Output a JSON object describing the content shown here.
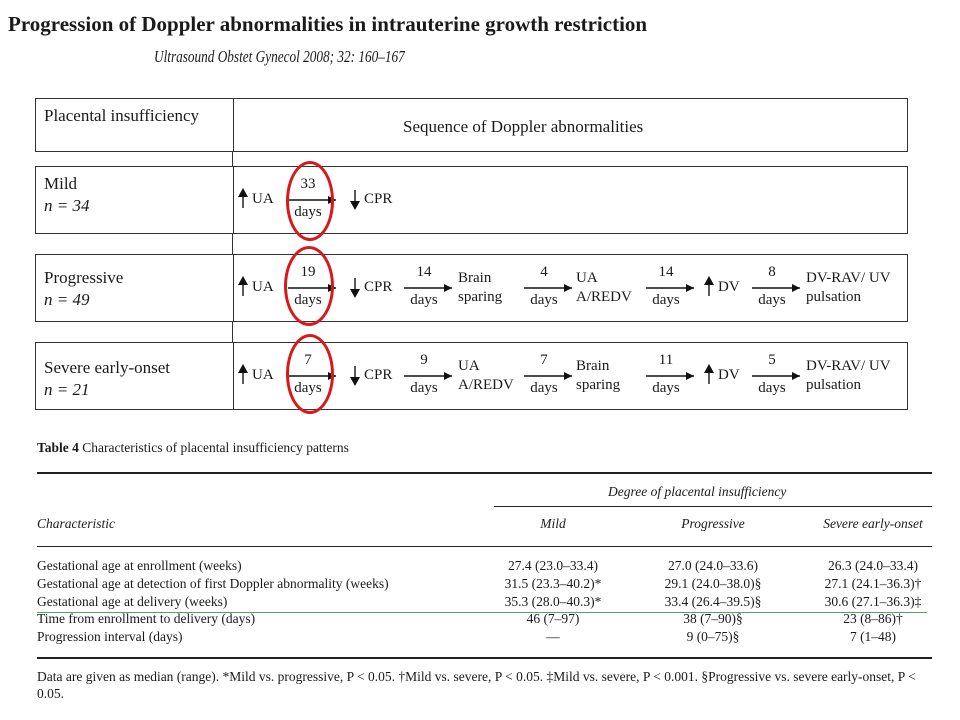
{
  "slide": {
    "title": "Progression of Doppler abnormalities in intrauterine growth restriction",
    "citation": "Ultrasound Obstet Gynecol 2008; 32: 160–167"
  },
  "figure": {
    "header_left": "Placental insufficiency",
    "header_right": "Sequence of Doppler abnormalities",
    "rows": [
      {
        "name": "Mild",
        "n": "n = 34",
        "steps": [
          {
            "arrow": "up",
            "label": "UA"
          },
          {
            "interval": "33",
            "unit": "days"
          },
          {
            "arrow": "down",
            "label": "CPR"
          }
        ]
      },
      {
        "name": "Progressive",
        "n": "n = 49",
        "steps": [
          {
            "arrow": "up",
            "label": "UA"
          },
          {
            "interval": "19",
            "unit": "days"
          },
          {
            "arrow": "down",
            "label": "CPR"
          },
          {
            "interval": "14",
            "unit": "days"
          },
          {
            "label": "Brain sparing"
          },
          {
            "interval": "4",
            "unit": "days"
          },
          {
            "label": "UA A/REDV"
          },
          {
            "interval": "14",
            "unit": "days"
          },
          {
            "arrow": "up",
            "label": "DV"
          },
          {
            "interval": "8",
            "unit": "days"
          },
          {
            "label": "DV-RAV/ UV pulsation"
          }
        ]
      },
      {
        "name": "Severe early-onset",
        "n": "n = 21",
        "steps": [
          {
            "arrow": "up",
            "label": "UA"
          },
          {
            "interval": "7",
            "unit": "days"
          },
          {
            "arrow": "down",
            "label": "CPR"
          },
          {
            "interval": "9",
            "unit": "days"
          },
          {
            "label": "UA A/REDV"
          },
          {
            "interval": "7",
            "unit": "days"
          },
          {
            "label": "Brain sparing"
          },
          {
            "interval": "11",
            "unit": "days"
          },
          {
            "arrow": "up",
            "label": "DV"
          },
          {
            "interval": "5",
            "unit": "days"
          },
          {
            "label": "DV-RAV/ UV pulsation"
          }
        ]
      }
    ],
    "highlight_color": "#d7191c"
  },
  "table4": {
    "caption_label": "Table 4",
    "caption_text": "Characteristics of placental insufficiency patterns",
    "group_header": "Degree of placental insufficiency",
    "col_characteristic": "Characteristic",
    "columns": [
      "Mild",
      "Progressive",
      "Severe early-onset"
    ],
    "rows": [
      {
        "label": "Gestational age at enrollment (weeks)",
        "values": [
          "27.4 (23.0–33.4)",
          "27.0 (24.0–33.6)",
          "26.3 (24.0–33.4)"
        ]
      },
      {
        "label": "Gestational age at detection of first Doppler abnormality (weeks)",
        "values": [
          "31.5 (23.3–40.2)*",
          "29.1 (24.0–38.0)§",
          "27.1 (24.1–36.3)†"
        ]
      },
      {
        "label": "Gestational age at delivery (weeks)",
        "values": [
          "35.3 (28.0–40.3)*",
          "33.4 (26.4–39.5)§",
          "30.6 (27.1–36.3)‡"
        ]
      },
      {
        "label": "Time from enrollment to delivery (days)",
        "values": [
          "46 (7–97)",
          "38 (7–90)§",
          "23 (8–86)†"
        ]
      },
      {
        "label": "Progression interval (days)",
        "values": [
          "—",
          "9 (0–75)§",
          "7 (1–48)"
        ]
      }
    ],
    "footnote": "Data are given as median (range). *Mild vs. progressive, P < 0.05. †Mild vs. severe, P < 0.05. ‡Mild vs. severe, P < 0.001. §Progressive vs. severe early-onset, P < 0.05."
  }
}
